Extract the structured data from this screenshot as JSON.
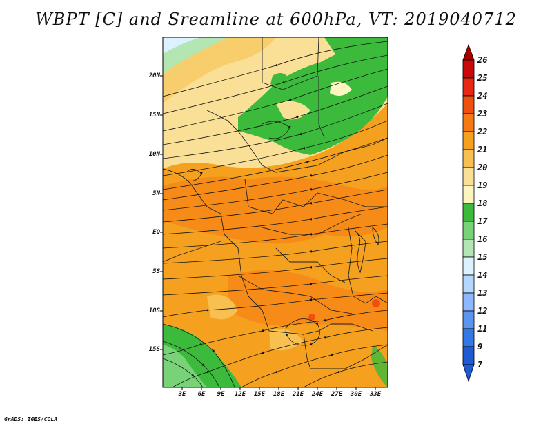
{
  "title": "WBPT [C] and Sreamline at 600hPa, VT: 2019040712",
  "credit": "GrADS: IGES/COLA",
  "lat_labels": [
    "20N",
    "15N",
    "10N",
    "5N",
    "EQ",
    "5S",
    "10S",
    "15S"
  ],
  "lon_labels": [
    "3E",
    "6E",
    "9E",
    "12E",
    "15E",
    "18E",
    "21E",
    "24E",
    "27E",
    "30E",
    "33E"
  ],
  "colorbar": {
    "labels": [
      "26",
      "25",
      "24",
      "23",
      "22",
      "21",
      "20",
      "19",
      "18",
      "17",
      "16",
      "15",
      "14",
      "13",
      "12",
      "11",
      "9",
      "7"
    ],
    "colors": [
      "#a50000",
      "#c80a0a",
      "#e62814",
      "#f0500f",
      "#f57a14",
      "#f5a01e",
      "#f7c050",
      "#f9e096",
      "#fcf5c0",
      "#3cba3c",
      "#78d278",
      "#b4e6b4",
      "#dcf2ff",
      "#b4d7ff",
      "#8cb8ff",
      "#5a96f0",
      "#3278e6",
      "#1e5ad2"
    ],
    "top_tip_color": "#a50000",
    "bottom_tip_color": "#1e5ad2"
  }
}
